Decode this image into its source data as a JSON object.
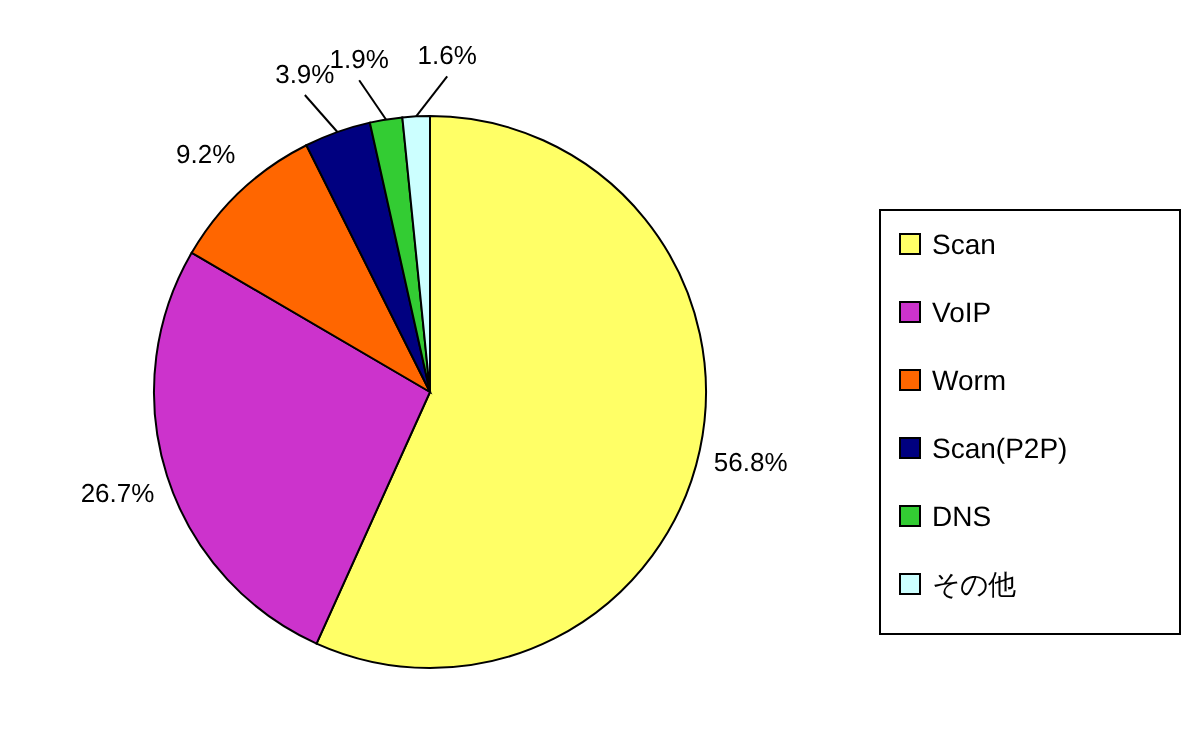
{
  "chart_data": {
    "type": "pie",
    "categories": [
      "Scan",
      "VoIP",
      "Worm",
      "Scan(P2P)",
      "DNS",
      "その他"
    ],
    "values": [
      56.8,
      26.7,
      9.2,
      3.9,
      1.9,
      1.6
    ],
    "colors": [
      "#ffff66",
      "#cc33cc",
      "#ff6600",
      "#000080",
      "#33cc33",
      "#ccffff"
    ],
    "value_labels": [
      "56.8%",
      "26.7%",
      "9.2%",
      "3.9%",
      "1.9%",
      "1.6%"
    ],
    "legend": "right"
  }
}
